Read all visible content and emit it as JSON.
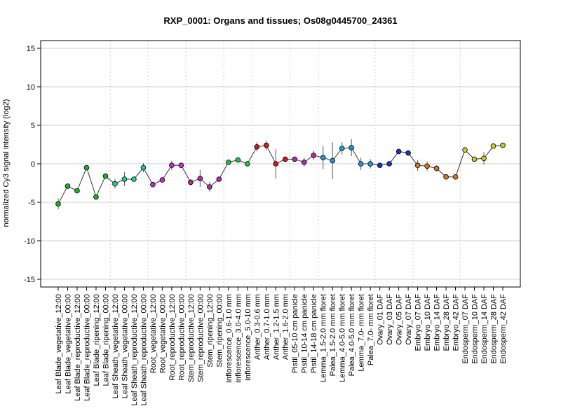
{
  "chart_data": {
    "type": "line",
    "title": "RXP_0001: Organs and tissues; Os08g0445700_24361",
    "xlabel": "",
    "ylabel": "normalized Cy3 signal intensity (log2)",
    "ylim": [
      -16,
      16
    ],
    "yticks": [
      -15,
      -10,
      -5,
      0,
      5,
      10,
      15
    ],
    "grid": true,
    "categories": [
      "Leaf Blade_vegetative_12:00",
      "Leaf Blade_vegetative_00:00",
      "Leaf Blade_reproductive_12:00",
      "Leaf Blade_reproductive_00:00",
      "Leaf Blade_ripening_12:00",
      "Leaf Blade_ripening_00:00",
      "Leaf Sheath_vegetative_12:00",
      "Leaf Sheath_vegetative_00:00",
      "Leaf Sheath_reproductive_12:00",
      "Leaf Sheath_reproductive_00:00",
      "Root_vegetative_12:00",
      "Root_vegetative_00:00",
      "Root_reproductive_12:00",
      "Root_reproductive_00:00",
      "Stem_reproductive_12:00",
      "Stem_reproductive_00:00",
      "Stem_ripening_12:00",
      "Stem_ripening_00:00",
      "Inflorescence_0.6-1.0 mm",
      "Inflorescence_3.0-4.0 mm",
      "Inflorescence_5.0-10 mm",
      "Anther_0.3-0.6 mm",
      "Anther_0.7-1.0 mm",
      "Anther_1.2-1.5 mm",
      "Anther_1.6-2.0 mm",
      "Pistil_05-10 cm panicle",
      "Pistil_10-14 cm panicle",
      "Pistil_14-18 cm panicle",
      "Lemma_1.5-2.0 mm floret",
      "Palea_1.5-2.0 mm floret",
      "Lemma_4.0-5.0 mm floret",
      "Palea_4.0-5.0 mm floret",
      "Lemma_7.0- mm floret",
      "Palea_7.0- mm floret",
      "Ovary_01 DAF",
      "Ovary_03 DAF",
      "Ovary_05 DAF",
      "Ovary_07 DAF",
      "Embryo_07 DAF",
      "Embryo_10 DAF",
      "Embryo_14 DAF",
      "Embryo_28 DAF",
      "Embryo_42 DAF",
      "Endosperm_07 DAF",
      "Endosperm_10 DAF",
      "Endosperm_14 DAF",
      "Endosperm_28 DAF",
      "Endosperm_42 DAF"
    ],
    "values": [
      -5.2,
      -2.9,
      -3.5,
      -0.5,
      -4.3,
      -1.6,
      -2.6,
      -2.0,
      -2.0,
      -0.5,
      -2.7,
      -2.1,
      -0.2,
      -0.2,
      -2.4,
      -1.9,
      -3.0,
      -2.0,
      0.2,
      0.5,
      0.0,
      2.2,
      2.4,
      0.0,
      0.6,
      0.6,
      0.2,
      1.1,
      0.8,
      0.4,
      2.0,
      2.1,
      0.0,
      0.0,
      -0.2,
      0.0,
      1.6,
      1.4,
      -0.2,
      -0.3,
      -0.6,
      -1.7,
      -1.7,
      1.8,
      0.6,
      0.7,
      2.3,
      2.4
    ],
    "errors": [
      0.7,
      0.3,
      0.3,
      0.3,
      0.3,
      0.3,
      0.6,
      0.9,
      0.3,
      0.6,
      0.2,
      0.3,
      0.6,
      0.3,
      0.4,
      1.1,
      0.6,
      0.3,
      0.3,
      0.3,
      0.3,
      0.6,
      0.6,
      1.9,
      0.3,
      0.3,
      0.6,
      0.6,
      1.5,
      2.4,
      0.8,
      1.1,
      0.8,
      0.6,
      0.3,
      0.3,
      0.2,
      0.3,
      0.7,
      0.6,
      0.4,
      0.3,
      0.3,
      0.3,
      0.3,
      0.8,
      0.3,
      0.3
    ],
    "colors": [
      "#1db31d",
      "#1db31d",
      "#1db31d",
      "#1db31d",
      "#1db31d",
      "#1db31d",
      "#1bd48a",
      "#1bd48a",
      "#1bd48a",
      "#1bd48a",
      "#c12fd1",
      "#c12fd1",
      "#c12fd1",
      "#c12fd1",
      "#b02ea8",
      "#b02ea8",
      "#b02ea8",
      "#b02ea8",
      "#22c04a",
      "#22c04a",
      "#22c04a",
      "#d11a1a",
      "#d11a1a",
      "#d11a1a",
      "#d11a1a",
      "#b12aa8",
      "#b12aa8",
      "#b12aa8",
      "#1a9cd6",
      "#1a9cd6",
      "#1a9cd6",
      "#1a9cd6",
      "#1a9cd6",
      "#1a9cd6",
      "#1534c9",
      "#1534c9",
      "#1534c9",
      "#1534c9",
      "#d9761a",
      "#d9761a",
      "#d9761a",
      "#d9761a",
      "#d9761a",
      "#c9cc1f",
      "#c9cc1f",
      "#c9cc1f",
      "#c9cc1f",
      "#c9cc1f"
    ],
    "group_separators_after": [
      5,
      9,
      13,
      17,
      20,
      24,
      27,
      33,
      37,
      42
    ]
  }
}
